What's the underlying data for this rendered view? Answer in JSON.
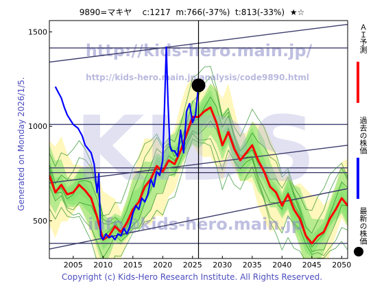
{
  "header": {
    "title": "9890=マキヤ    c:1217  m:766(-37%)  t:813(-33%)  ★☆"
  },
  "side_label": "Generated on Monday 2026/1/5.",
  "footer": "Copyright (c) Kids-Hero Research Institute. All Rights Reserved.",
  "watermarks": {
    "url_big": "http://kids-hero.main.jp/",
    "url_small": "http://kids-hero.main.jp/analysis/code9890.html",
    "email": "info@kids-hero.main.jp",
    "logo": "KIDS"
  },
  "legend": [
    {
      "label": "ＡＩ予測",
      "color": "#ff0000"
    },
    {
      "label": "過去の株価",
      "color": "#0000ff"
    },
    {
      "label": "最新の株価",
      "color": "#000000"
    }
  ],
  "colors": {
    "ai_forecast": "#ff0000",
    "past_price": "#0000ff",
    "band_light": "#fff6b0",
    "band_green": "#7ee06a",
    "trend_lines": "#3b3b6b",
    "green_lines": "#1b8a1b"
  },
  "chart_data": {
    "type": "line",
    "xlim": [
      2001,
      2051
    ],
    "ylim": [
      300,
      1560
    ],
    "x_ticks": [
      "2005",
      "2010",
      "2015",
      "2020",
      "2025",
      "2030",
      "2035",
      "2040",
      "2045",
      "2050"
    ],
    "y_ticks": [
      "500",
      "1000",
      "1500"
    ],
    "current": {
      "x": 2026.0,
      "y": 1217
    },
    "series": [
      {
        "key": "ai",
        "x": [
          2001,
          2002,
          2003,
          2004,
          2005,
          2006,
          2007,
          2008,
          2009,
          2010,
          2011,
          2012,
          2013,
          2014,
          2015,
          2016,
          2017,
          2018,
          2019,
          2020,
          2021,
          2022,
          2023,
          2024,
          2025,
          2026,
          2027,
          2028,
          2029,
          2030,
          2031,
          2032,
          2033,
          2034,
          2035,
          2036,
          2037,
          2038,
          2039,
          2040,
          2041,
          2042,
          2043,
          2044,
          2045,
          2046,
          2047,
          2048,
          2049,
          2050,
          2051
        ],
        "values": [
          740,
          650,
          690,
          640,
          650,
          690,
          660,
          620,
          520,
          400,
          420,
          470,
          440,
          490,
          560,
          600,
          680,
          720,
          790,
          760,
          820,
          800,
          870,
          960,
          1050,
          1050,
          1080,
          1100,
          1020,
          900,
          970,
          880,
          820,
          860,
          900,
          820,
          760,
          680,
          650,
          580,
          640,
          560,
          510,
          420,
          380,
          420,
          440,
          510,
          560,
          620,
          580
        ]
      },
      {
        "key": "past",
        "x": [
          2002.0,
          2002.5,
          2003.0,
          2003.5,
          2004.0,
          2005.0,
          2005.8,
          2006.5,
          2007.0,
          2007.5,
          2008.0,
          2008.5,
          2009.0,
          2009.3,
          2009.6,
          2010.0,
          2010.5,
          2011.0,
          2011.5,
          2012.0,
          2012.5,
          2013.0,
          2013.5,
          2014.0,
          2014.5,
          2015.0,
          2015.5,
          2016.0,
          2016.5,
          2017.0,
          2017.5,
          2018.0,
          2018.5,
          2019.0,
          2019.5,
          2020.0,
          2020.3,
          2020.6,
          2020.9,
          2021.2,
          2021.5,
          2022.0,
          2022.5,
          2023.0,
          2023.5,
          2024.0,
          2024.5,
          2025.0,
          2025.5,
          2026.0
        ],
        "values": [
          1210,
          1180,
          1150,
          1100,
          1060,
          1010,
          990,
          950,
          900,
          880,
          860,
          800,
          650,
          750,
          420,
          400,
          430,
          410,
          420,
          400,
          430,
          420,
          460,
          430,
          470,
          540,
          580,
          560,
          620,
          600,
          640,
          720,
          680,
          760,
          740,
          820,
          1100,
          1420,
          1120,
          900,
          870,
          870,
          840,
          980,
          860,
          1080,
          1120,
          1020,
          1060,
          1217
        ]
      }
    ],
    "trend_lines": [
      {
        "x": [
          2001,
          2051
        ],
        "y": [
          1340,
          1540
        ]
      },
      {
        "x": [
          2001,
          2051
        ],
        "y": [
          700,
          900
        ]
      },
      {
        "x": [
          2001,
          2051
        ],
        "y": [
          350,
          670
        ]
      },
      {
        "x": [
          2001,
          2051
        ],
        "y": [
          1415,
          1415
        ]
      },
      {
        "x": [
          2001,
          2051
        ],
        "y": [
          1010,
          1010
        ]
      },
      {
        "x": [
          2001,
          2051
        ],
        "y": [
          780,
          780
        ]
      },
      {
        "x": [
          2001,
          2051
        ],
        "y": [
          755,
          755
        ]
      },
      {
        "x": [
          2001,
          2051
        ],
        "y": [
          380,
          380
        ]
      }
    ]
  }
}
